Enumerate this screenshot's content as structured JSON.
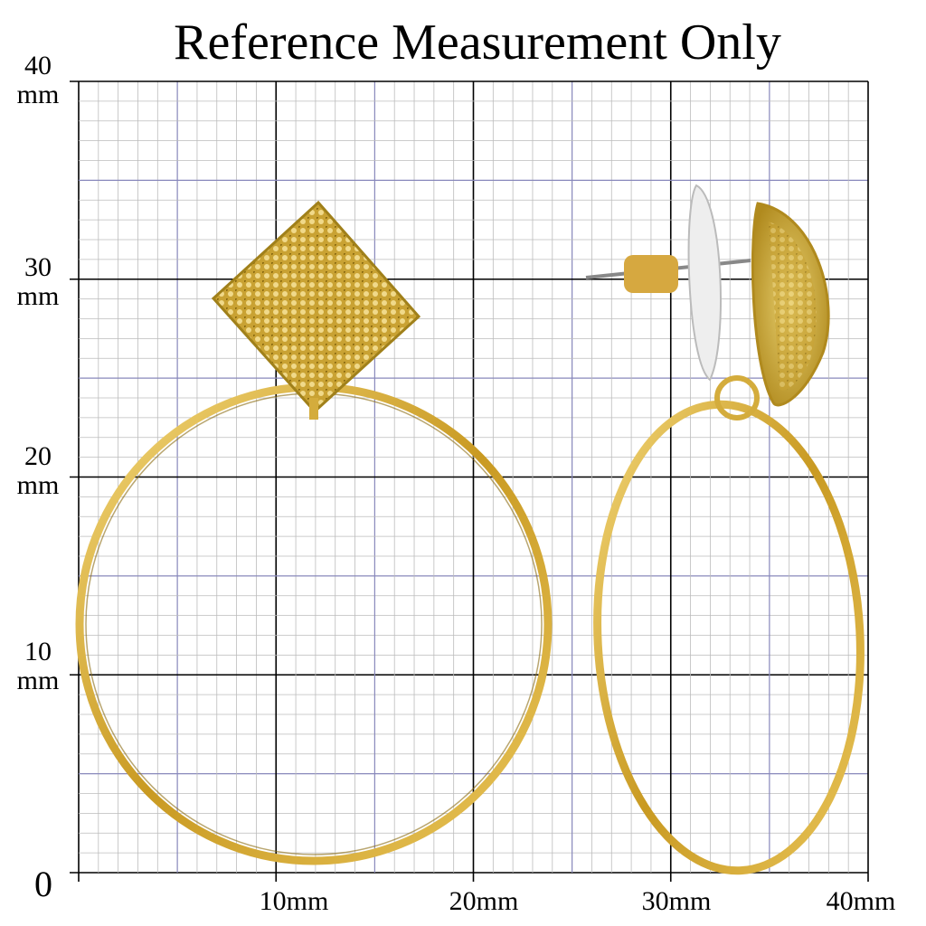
{
  "title": "Reference Measurement Only",
  "left_labels": [
    {
      "number": "40",
      "unit": "mm"
    },
    {
      "number": "30",
      "unit": "mm"
    },
    {
      "number": "20",
      "unit": "mm"
    },
    {
      "number": "10",
      "unit": "mm"
    }
  ],
  "origin": "0",
  "bottom_labels": [
    "10mm",
    "20mm",
    "30mm",
    "40mm"
  ]
}
